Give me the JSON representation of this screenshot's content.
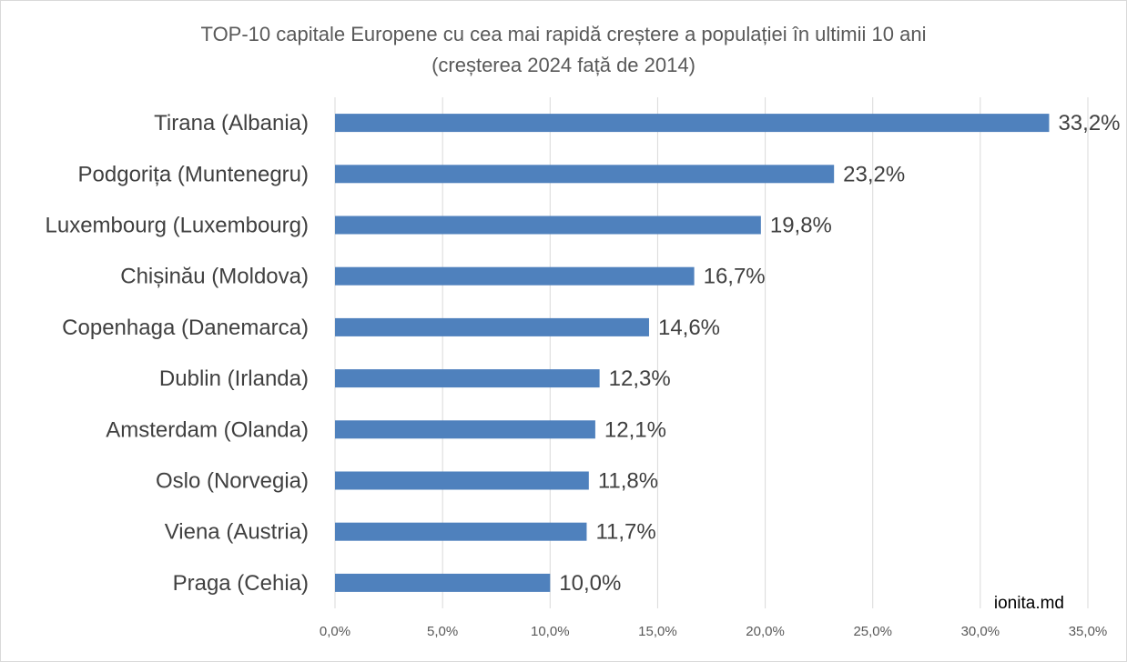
{
  "chart_data": {
    "type": "bar",
    "orientation": "horizontal",
    "title": "TOP-10 capitale Europene cu cea mai rapidă creștere a populației în ultimii 10 ani",
    "subtitle": "(creșterea 2024 față de 2014)",
    "categories": [
      "Tirana (Albania)",
      "Podgorița (Muntenegru)",
      "Luxembourg (Luxembourg)",
      "Chișinău (Moldova)",
      "Copenhaga (Danemarca)",
      "Dublin (Irlanda)",
      "Amsterdam (Olanda)",
      "Oslo (Norvegia)",
      "Viena (Austria)",
      "Praga (Cehia)"
    ],
    "values": [
      33.2,
      23.2,
      19.8,
      16.7,
      14.6,
      12.3,
      12.1,
      11.8,
      11.7,
      10.0
    ],
    "value_labels": [
      "33,2%",
      "23,2%",
      "19,8%",
      "16,7%",
      "14,6%",
      "12,3%",
      "12,1%",
      "11,8%",
      "11,7%",
      "10,0%"
    ],
    "xlim": [
      0,
      35
    ],
    "xticks": [
      0,
      5,
      10,
      15,
      20,
      25,
      30,
      35
    ],
    "xtick_labels": [
      "0,0%",
      "5,0%",
      "10,0%",
      "15,0%",
      "20,0%",
      "25,0%",
      "30,0%",
      "35,0%"
    ],
    "xlabel": "",
    "ylabel": "",
    "grid": true,
    "series_color": "#4f81bd",
    "credit": "ionita.md"
  }
}
